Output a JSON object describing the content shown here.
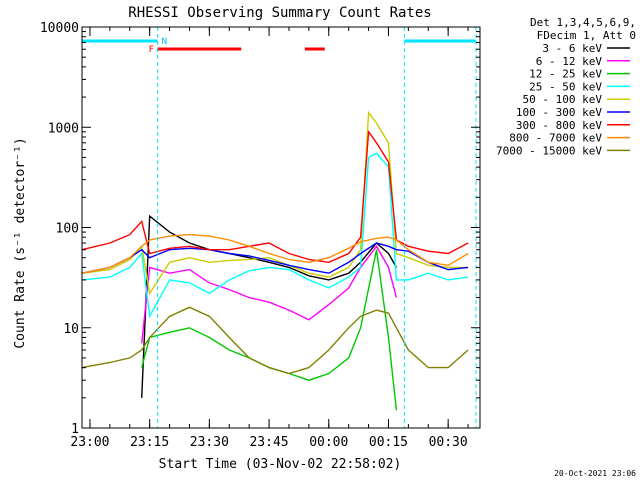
{
  "chart_data": {
    "type": "line",
    "title": "RHESSI Observing Summary Count Rates",
    "xlabel": "Start Time (03-Nov-02 22:58:02)",
    "ylabel": "Count Rate (s⁻¹ detector⁻¹)",
    "y_scale": "log",
    "ylim": [
      1,
      10000
    ],
    "xlim": [
      "22:58",
      "00:38"
    ],
    "x_ticks": [
      "23:00",
      "23:15",
      "23:30",
      "23:45",
      "00:00",
      "00:15",
      "00:30"
    ],
    "y_ticks": [
      "1",
      "10",
      "100",
      "1000",
      "10000"
    ],
    "legend_header": [
      "Det 1,3,4,5,6,9,",
      "FDecim 1, Att 0"
    ],
    "legend_position": "top-right",
    "footer_date": "20-Oct-2021 23:06",
    "annotations": {
      "night_label": "N",
      "flare_label": "F",
      "night_intervals": [
        [
          "22:58",
          "23:17"
        ],
        [
          "00:19",
          "00:37"
        ]
      ],
      "flare_intervals": [
        [
          "23:17",
          "23:38"
        ],
        [
          "23:54",
          "23:59"
        ]
      ],
      "saa_markers": [
        "23:17",
        "00:19",
        "00:37"
      ]
    },
    "series": [
      {
        "name": "3 - 6 keV",
        "color": "#000000",
        "x": [
          "23:13",
          "23:15",
          "23:20",
          "23:25",
          "23:30",
          "23:35",
          "23:40",
          "23:45",
          "23:50",
          "23:55",
          "00:00",
          "00:05",
          "00:08",
          "00:12",
          "00:15",
          "00:17"
        ],
        "y": [
          2,
          130,
          90,
          70,
          60,
          55,
          50,
          45,
          40,
          33,
          30,
          35,
          45,
          70,
          55,
          40
        ]
      },
      {
        "name": "6 - 12 keV",
        "color": "#ff00ff",
        "x": [
          "23:13",
          "23:15",
          "23:20",
          "23:25",
          "23:30",
          "23:35",
          "23:40",
          "23:45",
          "23:50",
          "23:55",
          "00:00",
          "00:05",
          "00:08",
          "00:12",
          "00:15",
          "00:17"
        ],
        "y": [
          7,
          40,
          35,
          38,
          28,
          24,
          20,
          18,
          15,
          12,
          17,
          25,
          40,
          65,
          40,
          20
        ]
      },
      {
        "name": "12 - 25 keV",
        "color": "#00c800",
        "x": [
          "23:13",
          "23:15",
          "23:20",
          "23:25",
          "23:30",
          "23:35",
          "23:40",
          "23:45",
          "23:50",
          "23:55",
          "00:00",
          "00:05",
          "00:08",
          "00:12",
          "00:15",
          "00:17"
        ],
        "y": [
          4,
          8,
          9,
          10,
          8,
          6,
          5,
          4,
          3.5,
          3,
          3.5,
          5,
          10,
          60,
          8,
          1.5
        ]
      },
      {
        "name": "25 - 50 keV",
        "color": "#00ffff",
        "x": [
          "22:58",
          "23:05",
          "23:10",
          "23:13",
          "23:15",
          "23:20",
          "23:25",
          "23:30",
          "23:35",
          "23:40",
          "23:45",
          "23:50",
          "23:55",
          "00:00",
          "00:05",
          "00:08",
          "00:10",
          "00:12",
          "00:15",
          "00:17",
          "00:20",
          "00:25",
          "00:30",
          "00:35"
        ],
        "y": [
          30,
          32,
          40,
          55,
          13,
          30,
          28,
          22,
          30,
          37,
          40,
          38,
          30,
          25,
          32,
          40,
          500,
          550,
          400,
          30,
          30,
          35,
          30,
          32
        ]
      },
      {
        "name": "50 - 100 keV",
        "color": "#cccc00",
        "x": [
          "22:58",
          "23:05",
          "23:10",
          "23:13",
          "23:15",
          "23:20",
          "23:25",
          "23:30",
          "23:35",
          "23:40",
          "23:45",
          "23:50",
          "23:55",
          "00:00",
          "00:05",
          "00:08",
          "00:10",
          "00:12",
          "00:15",
          "00:17",
          "00:20",
          "00:25",
          "00:30",
          "00:35"
        ],
        "y": [
          35,
          38,
          48,
          65,
          22,
          45,
          50,
          45,
          47,
          48,
          50,
          42,
          35,
          32,
          40,
          60,
          1400,
          1100,
          700,
          55,
          50,
          42,
          40,
          40
        ]
      },
      {
        "name": "100 - 300 keV",
        "color": "#0000ff",
        "x": [
          "22:58",
          "23:05",
          "23:10",
          "23:13",
          "23:15",
          "23:20",
          "23:25",
          "23:30",
          "23:35",
          "23:40",
          "23:45",
          "23:50",
          "23:55",
          "00:00",
          "00:05",
          "00:08",
          "00:12",
          "00:15",
          "00:17",
          "00:20",
          "00:25",
          "00:30",
          "00:35"
        ],
        "y": [
          35,
          40,
          50,
          60,
          50,
          60,
          62,
          60,
          55,
          52,
          47,
          42,
          38,
          35,
          45,
          55,
          70,
          65,
          60,
          58,
          45,
          38,
          40
        ]
      },
      {
        "name": "300 - 800 keV",
        "color": "#ff0000",
        "x": [
          "22:58",
          "23:05",
          "23:10",
          "23:13",
          "23:15",
          "23:20",
          "23:25",
          "23:30",
          "23:35",
          "23:40",
          "23:45",
          "23:50",
          "23:55",
          "00:00",
          "00:05",
          "00:08",
          "00:10",
          "00:12",
          "00:15",
          "00:17",
          "00:20",
          "00:25",
          "00:30",
          "00:35"
        ],
        "y": [
          60,
          70,
          85,
          115,
          55,
          62,
          65,
          60,
          60,
          65,
          70,
          55,
          48,
          45,
          55,
          80,
          900,
          700,
          450,
          75,
          65,
          58,
          55,
          70
        ]
      },
      {
        "name": "800 - 7000 keV",
        "color": "#ff8c00",
        "x": [
          "22:58",
          "23:05",
          "23:10",
          "23:13",
          "23:15",
          "23:20",
          "23:25",
          "23:30",
          "23:35",
          "23:40",
          "23:45",
          "23:50",
          "23:55",
          "00:00",
          "00:05",
          "00:08",
          "00:12",
          "00:15",
          "00:17",
          "00:20",
          "00:25",
          "00:30",
          "00:35"
        ],
        "y": [
          35,
          40,
          50,
          65,
          75,
          82,
          85,
          82,
          75,
          65,
          55,
          48,
          45,
          50,
          62,
          72,
          78,
          80,
          75,
          60,
          45,
          42,
          55
        ]
      },
      {
        "name": "7000 - 15000 keV",
        "color": "#808000",
        "x": [
          "22:58",
          "23:05",
          "23:10",
          "23:13",
          "23:15",
          "23:20",
          "23:25",
          "23:30",
          "23:35",
          "23:40",
          "23:45",
          "23:50",
          "23:55",
          "00:00",
          "00:05",
          "00:08",
          "00:12",
          "00:15",
          "00:17",
          "00:20",
          "00:25",
          "00:30",
          "00:35"
        ],
        "y": [
          4,
          4.5,
          5,
          6,
          8,
          13,
          16,
          13,
          8,
          5,
          4,
          3.5,
          4,
          6,
          10,
          13,
          15,
          14,
          10,
          6,
          4,
          4,
          6
        ]
      }
    ]
  }
}
